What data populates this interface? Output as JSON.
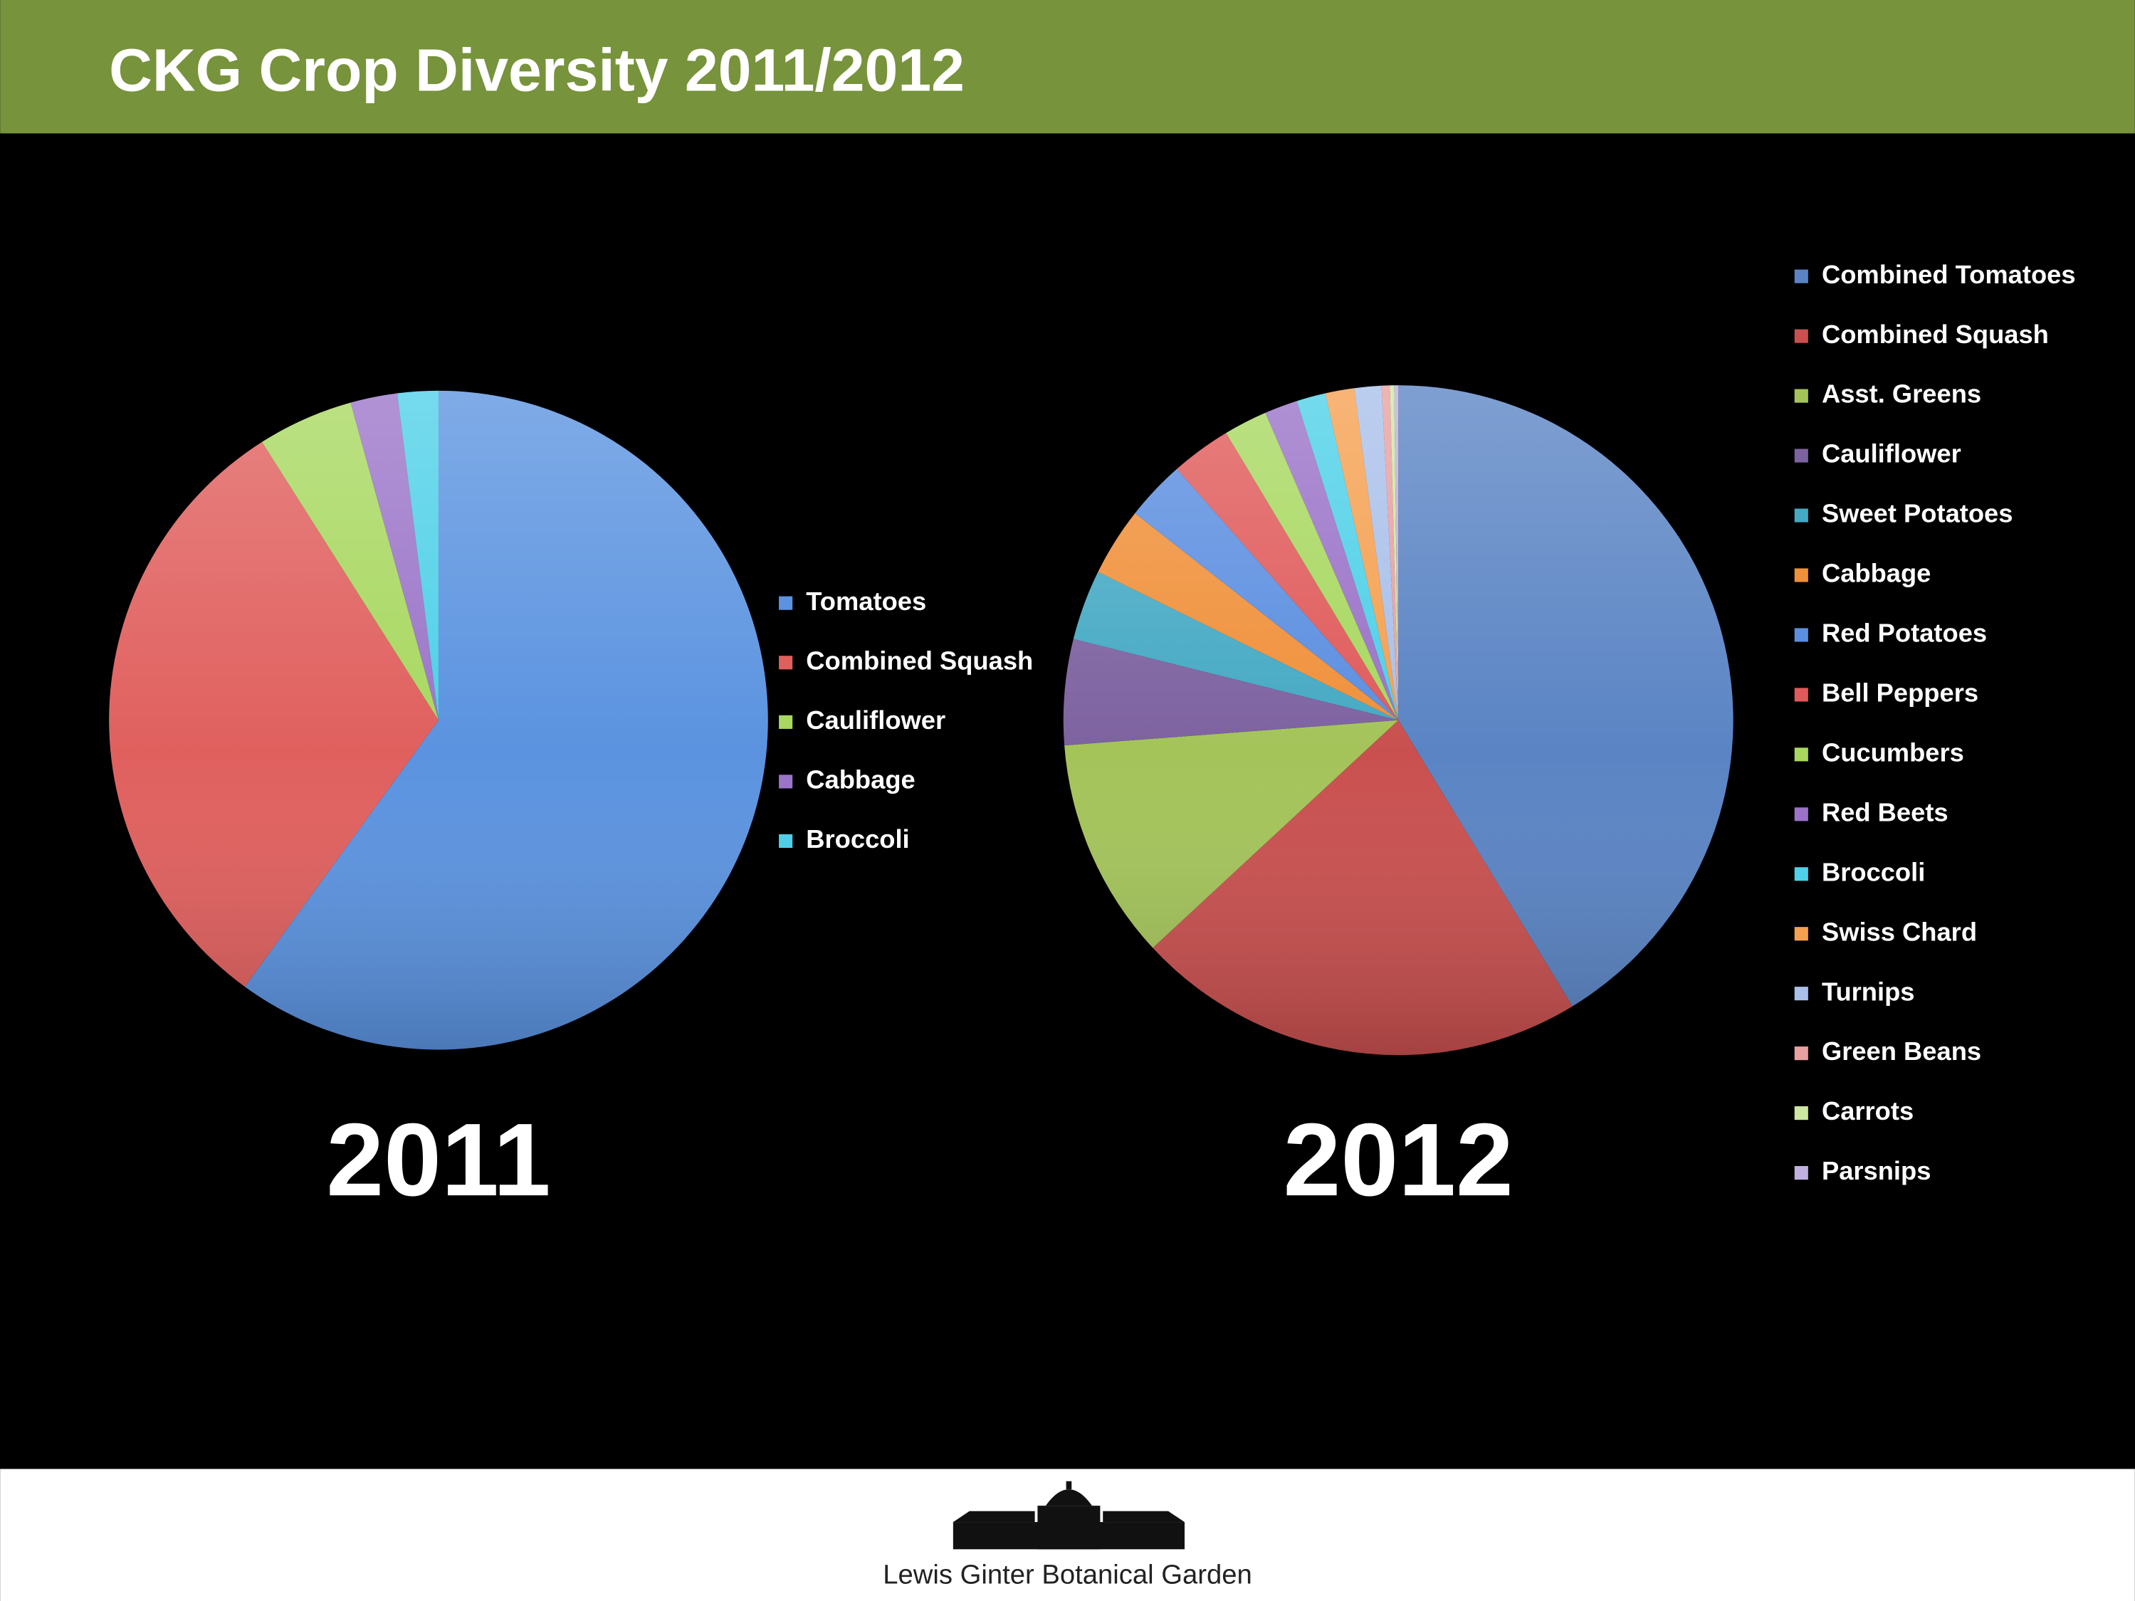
{
  "header": {
    "title": "CKG Crop Diversity 2011/2012"
  },
  "chart_data": [
    {
      "type": "pie",
      "title": "2011",
      "categories": [
        "Tomatoes",
        "Combined Squash",
        "Cauliflower",
        "Cabbage",
        "Broccoli"
      ],
      "values": [
        60,
        31,
        4.7,
        2.3,
        2.0
      ],
      "colors": [
        "#5b93e0",
        "#e0605e",
        "#a8d860",
        "#9b75c9",
        "#4fd0e8"
      ],
      "legend": "right"
    },
    {
      "type": "pie",
      "title": "2012",
      "categories": [
        "Combined Tomatoes",
        "Combined Squash",
        "Asst. Greens",
        "Cauliflower",
        "Sweet Potatoes",
        "Cabbage",
        "Red Potatoes",
        "Bell Peppers",
        "Cucumbers",
        "Red Beets",
        "Broccoli",
        "Swiss Chard",
        "Turnips",
        "Green Beans",
        "Carrots",
        "Parsnips"
      ],
      "values": [
        41.3,
        21.8,
        10.7,
        5.1,
        3.4,
        3.3,
        2.9,
        2.9,
        2.1,
        1.6,
        1.4,
        1.4,
        1.3,
        0.4,
        0.2,
        0.2
      ],
      "colors": [
        "#5a84c4",
        "#c9504f",
        "#a4c45a",
        "#7d62a0",
        "#45a9c4",
        "#f0903a",
        "#5b8ee0",
        "#e05a5a",
        "#a8d860",
        "#9a72c8",
        "#4ed0e8",
        "#f5a050",
        "#a9c0ea",
        "#e8a0a0",
        "#cde8a0",
        "#c0b0e0"
      ],
      "legend": "right"
    }
  ],
  "footer": {
    "logo_text": "Lewis Ginter Botanical Garden"
  }
}
